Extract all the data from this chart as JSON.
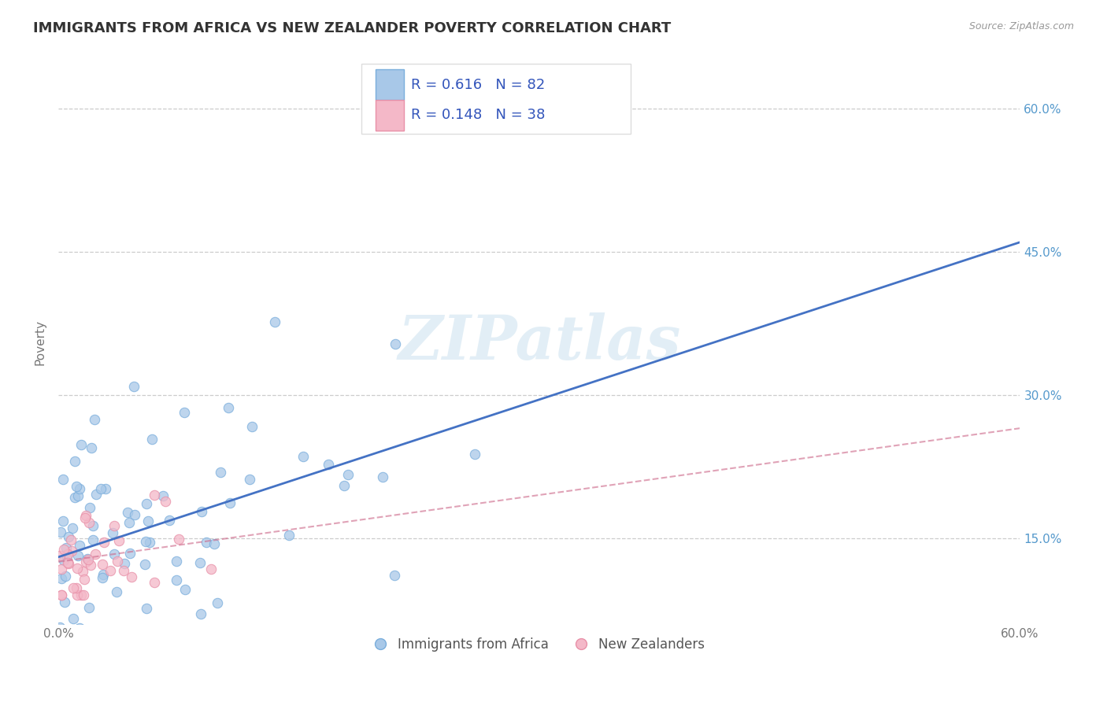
{
  "title": "IMMIGRANTS FROM AFRICA VS NEW ZEALANDER POVERTY CORRELATION CHART",
  "source_text": "Source: ZipAtlas.com",
  "ylabel": "Poverty",
  "xlim": [
    0.0,
    0.6
  ],
  "ylim": [
    0.06,
    0.65
  ],
  "xtick_vals": [
    0.0,
    0.1,
    0.2,
    0.3,
    0.4,
    0.5,
    0.6
  ],
  "xtick_labels": [
    "0.0%",
    "",
    "",
    "",
    "",
    "",
    "60.0%"
  ],
  "ytick_vals": [
    0.15,
    0.3,
    0.45,
    0.6
  ],
  "ytick_labels_right": [
    "15.0%",
    "30.0%",
    "45.0%",
    "60.0%"
  ],
  "blue_scatter_color": "#a8c8e8",
  "blue_edge_color": "#7aaedc",
  "pink_scatter_color": "#f4b8c8",
  "pink_edge_color": "#e890a8",
  "blue_line_color": "#4472c4",
  "pink_line_color": "#d4607880",
  "legend_R1": "R = 0.616",
  "legend_N1": "N = 82",
  "legend_R2": "R = 0.148",
  "legend_N2": "N = 38",
  "legend_label1": "Immigrants from Africa",
  "legend_label2": "New Zealanders",
  "watermark": "ZIPatlas",
  "background_color": "#ffffff",
  "grid_color": "#cccccc",
  "title_fontsize": 13,
  "blue_n": 82,
  "pink_n": 38,
  "blue_line_x0": 0.0,
  "blue_line_y0": 0.13,
  "blue_line_x1": 0.6,
  "blue_line_y1": 0.46,
  "pink_line_x0": 0.0,
  "pink_line_y0": 0.125,
  "pink_line_x1": 0.6,
  "pink_line_y1": 0.265
}
